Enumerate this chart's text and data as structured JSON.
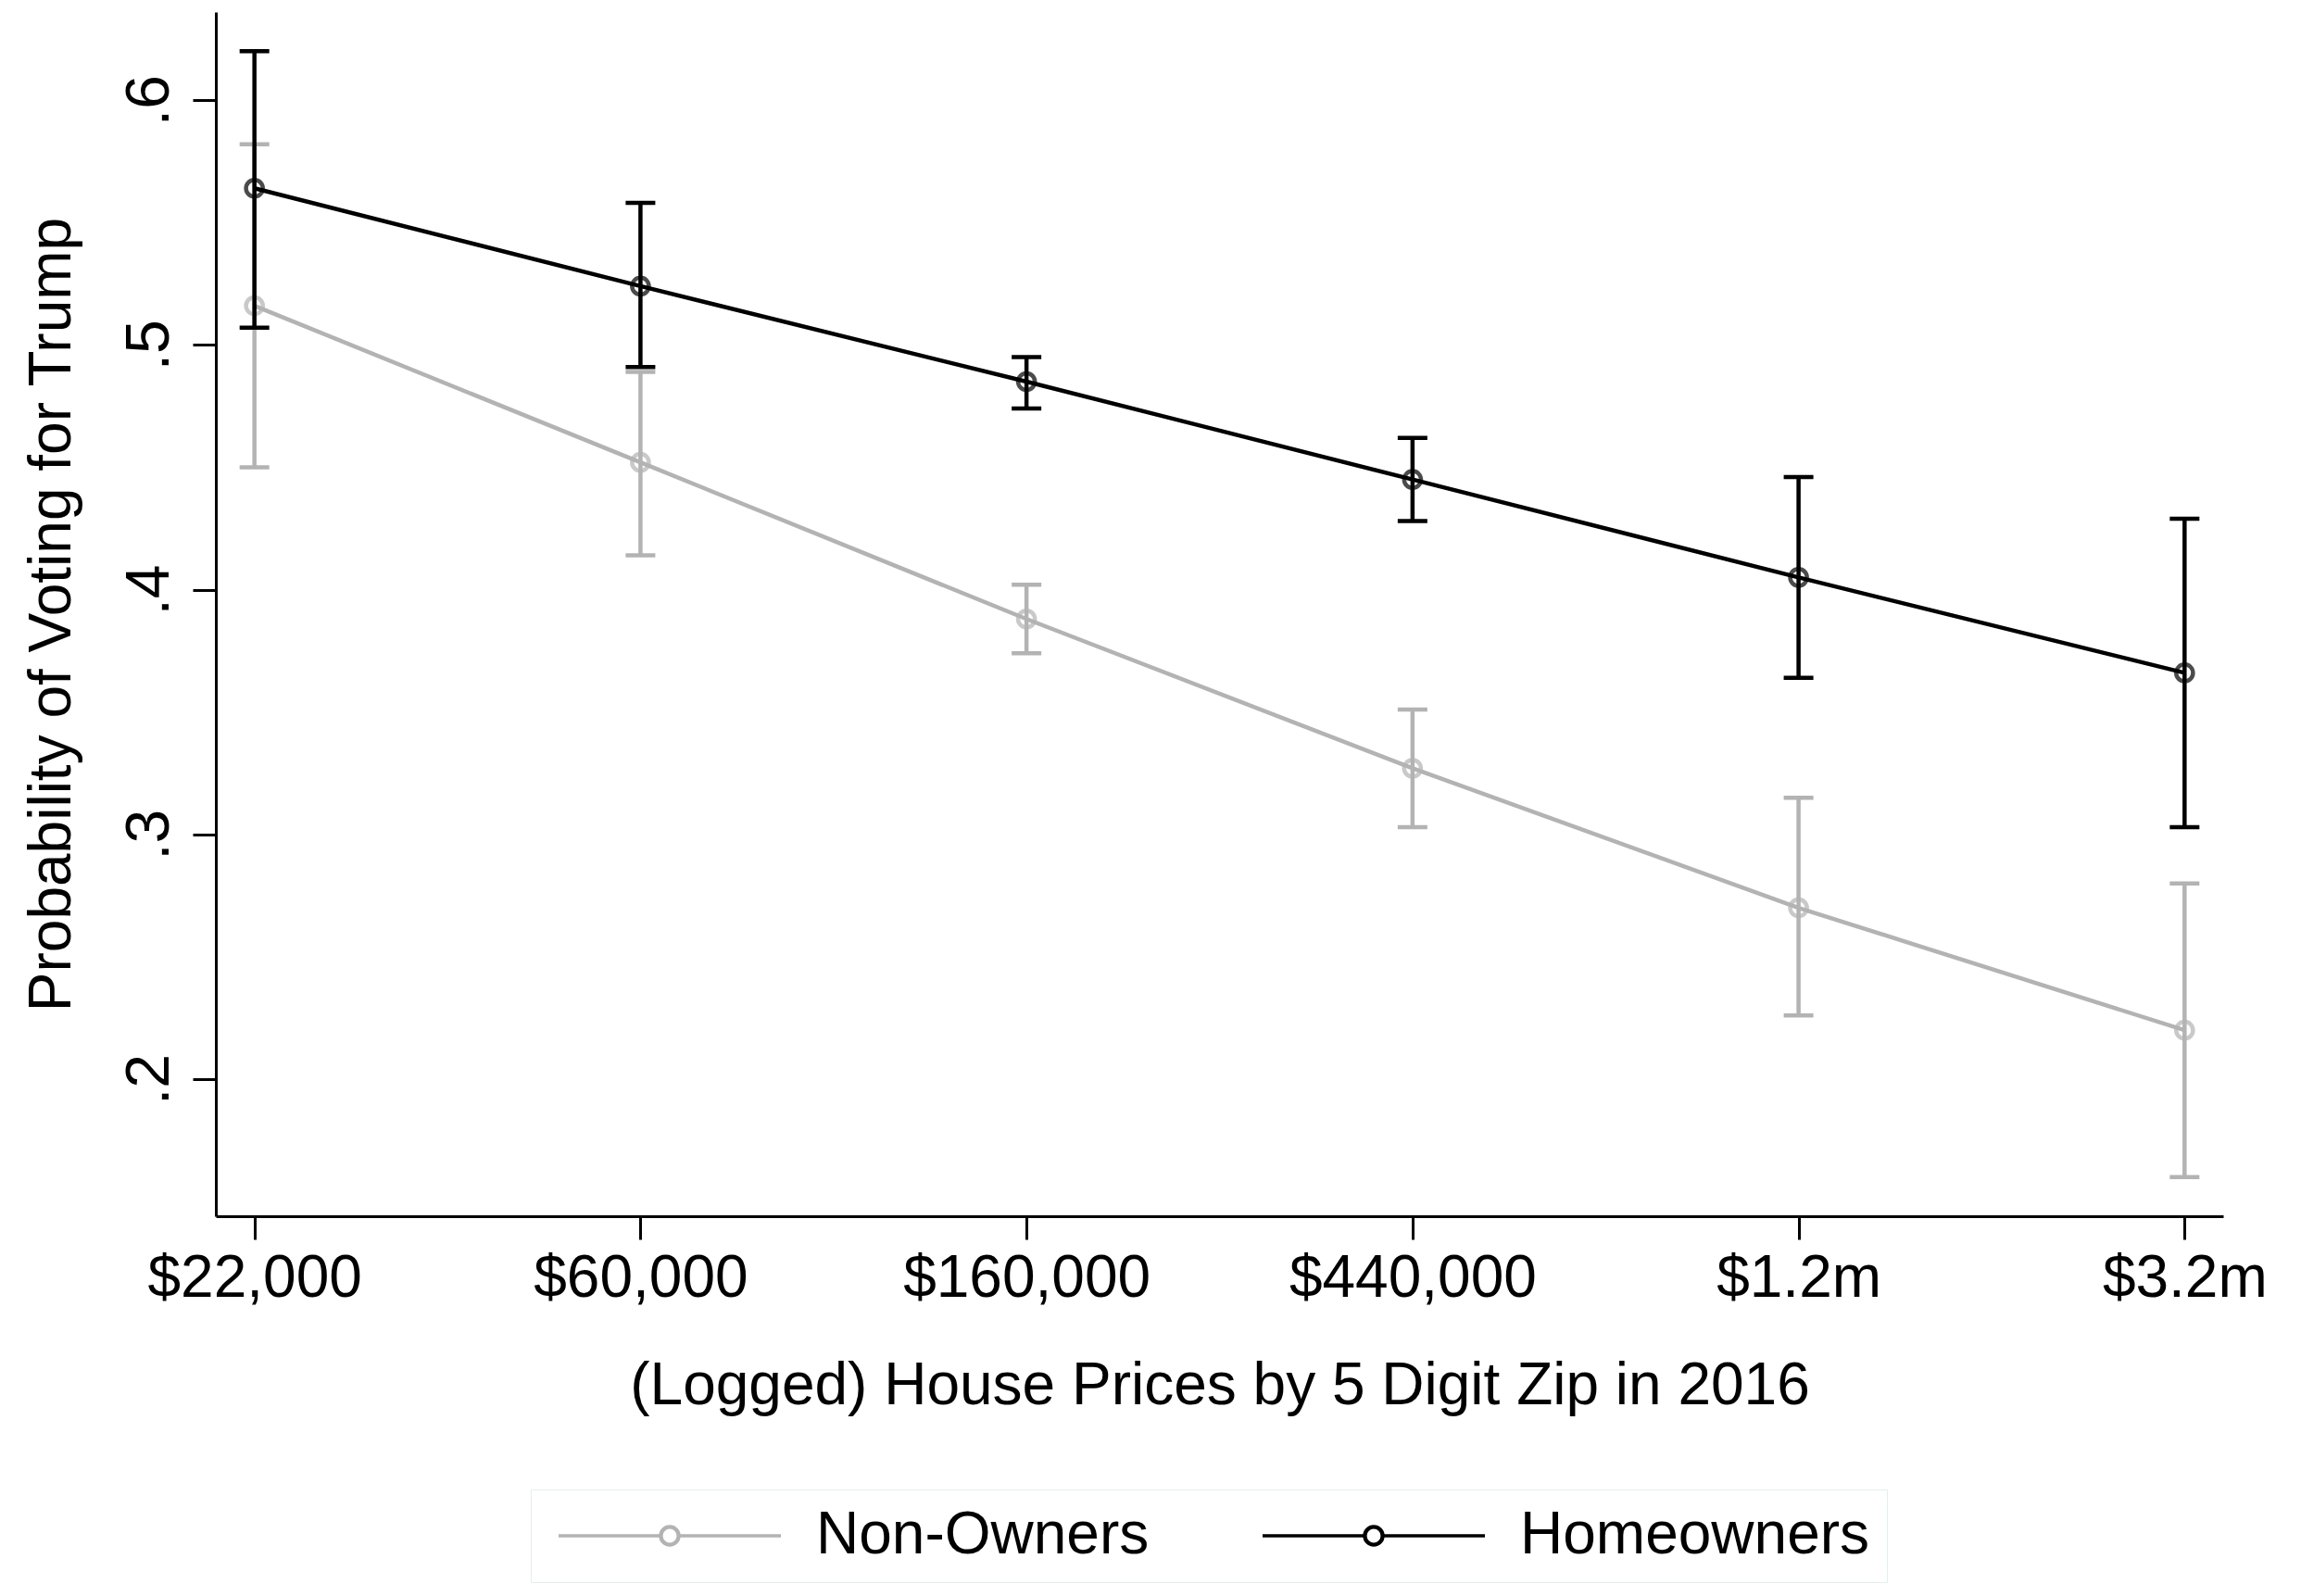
{
  "chart_data": {
    "type": "line",
    "xlabel": "(Logged) House Prices by 5 Digit Zip in 2016",
    "ylabel": "Probability of Voting for Trump",
    "categories": [
      "$22,000",
      "$60,000",
      "$160,000",
      "$440,000",
      "$1.2m",
      "$3.2m"
    ],
    "series": [
      {
        "name": "Non-Owners",
        "color": "#b3b3b3",
        "values": [
          0.516,
          0.452,
          0.388,
          0.327,
          0.27,
          0.22
        ],
        "errors": [
          [
            0.45,
            0.582
          ],
          [
            0.414,
            0.489
          ],
          [
            0.374,
            0.402
          ],
          [
            0.303,
            0.351
          ],
          [
            0.226,
            0.315
          ],
          [
            0.16,
            0.28
          ]
        ]
      },
      {
        "name": "Homeowners",
        "color": "#000000",
        "values": [
          0.564,
          0.524,
          0.485,
          0.445,
          0.405,
          0.366
        ],
        "errors": [
          [
            0.507,
            0.62
          ],
          [
            0.491,
            0.558
          ],
          [
            0.474,
            0.495
          ],
          [
            0.428,
            0.462
          ],
          [
            0.364,
            0.446
          ],
          [
            0.303,
            0.429
          ]
        ]
      }
    ],
    "ylim": [
      0.144,
      0.636
    ],
    "yticks": [
      {
        "value": 0.2,
        "label": ".2"
      },
      {
        "value": 0.3,
        "label": ".3"
      },
      {
        "value": 0.4,
        "label": ".4"
      },
      {
        "value": 0.5,
        "label": ".5"
      },
      {
        "value": 0.6,
        "label": ".6"
      }
    ],
    "legend": "bottom",
    "marker": "circle",
    "grid": false
  }
}
